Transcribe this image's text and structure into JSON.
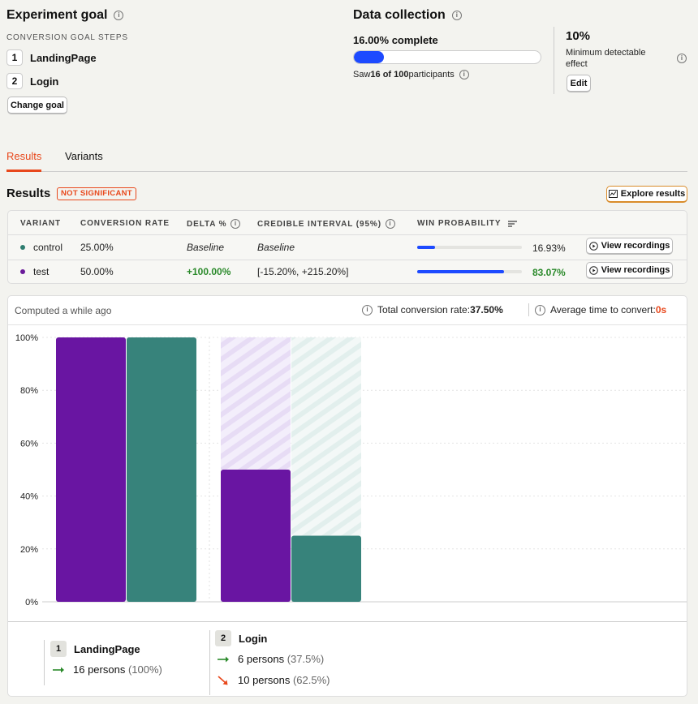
{
  "goal": {
    "title": "Experiment goal",
    "steps_label": "CONVERSION GOAL STEPS",
    "steps": [
      {
        "num": "1",
        "name": "LandingPage"
      },
      {
        "num": "2",
        "name": "Login"
      }
    ],
    "change_label": "Change goal"
  },
  "collection": {
    "title": "Data collection",
    "complete_text": "16.00% complete",
    "progress": 0.16,
    "saw_prefix": "Saw ",
    "saw_count": "16 of 100",
    "saw_suffix": " participants",
    "mde_value": "10%",
    "mde_label_1": "Minimum detectable",
    "mde_label_2": "effect",
    "edit_label": "Edit"
  },
  "tabs": [
    {
      "label": "Results",
      "active": true
    },
    {
      "label": "Variants",
      "active": false
    }
  ],
  "results": {
    "title": "Results",
    "badge": "NOT SIGNIFICANT",
    "explore_label": "Explore results",
    "columns": [
      "VARIANT",
      "CONVERSION RATE",
      "DELTA %",
      "CREDIBLE INTERVAL (95%)",
      "WIN PROBABILITY"
    ],
    "rows": [
      {
        "variant": "control",
        "rate": "25.00%",
        "delta": "Baseline",
        "interval": "Baseline",
        "win": "16.93%",
        "win_value": 0.1693,
        "dot": "#2e7d6f",
        "recordings": "View recordings"
      },
      {
        "variant": "test",
        "rate": "50.00%",
        "delta": "+100.00%",
        "interval": "[-15.20%, +215.20%]",
        "win": "83.07%",
        "win_value": 0.8307,
        "dot": "#6a1b9a",
        "recordings": "View recordings"
      }
    ]
  },
  "summary": {
    "computed": "Computed a while ago",
    "total_label": "Total conversion rate: ",
    "total_value": "37.50%",
    "avg_label": "Average time to convert: ",
    "avg_value": "0s"
  },
  "chart_data": {
    "type": "bar",
    "categories": [
      "LandingPage",
      "Login"
    ],
    "series": [
      {
        "name": "test",
        "values": [
          100,
          50
        ],
        "color": "#6915a2"
      },
      {
        "name": "control",
        "values": [
          100,
          25
        ],
        "color": "#37837b"
      }
    ],
    "yticks": [
      "100%",
      "80%",
      "60%",
      "40%",
      "20%",
      "0%"
    ],
    "ylim": [
      0,
      100
    ]
  },
  "legend": {
    "steps": [
      {
        "num": "1",
        "name": "LandingPage",
        "lines": [
          {
            "persons": "16 persons",
            "pct": " (100%)",
            "kind": "up"
          }
        ]
      },
      {
        "num": "2",
        "name": "Login",
        "lines": [
          {
            "persons": "6 persons",
            "pct": " (37.5%)",
            "kind": "up"
          },
          {
            "persons": "10 persons",
            "pct": " (62.5%)",
            "kind": "down"
          }
        ]
      }
    ]
  },
  "colors": {
    "accent": "#e8481c",
    "progress": "#1d4aff",
    "positive": "#2b8a2b"
  }
}
